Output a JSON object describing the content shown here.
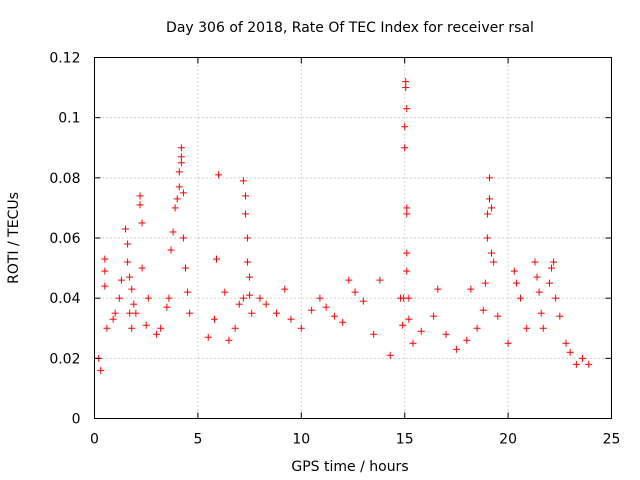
{
  "chart_data": {
    "type": "scatter",
    "title": "Day 306 of 2018, Rate Of TEC Index for receiver rsal",
    "xlabel": "GPS time / hours",
    "ylabel": "ROTI / TECUs",
    "xlim": [
      0,
      25
    ],
    "ylim": [
      0,
      0.12
    ],
    "x_ticks": [
      0,
      5,
      10,
      15,
      20,
      25
    ],
    "y_ticks": [
      0,
      0.02,
      0.04,
      0.06,
      0.08,
      0.1,
      0.12
    ],
    "x_tick_labels": [
      "0",
      "5",
      "10",
      "15",
      "20",
      "25"
    ],
    "y_tick_labels": [
      "0",
      "0.02",
      "0.04",
      "0.06",
      "0.08",
      "0.1",
      "0.12"
    ],
    "grid": true,
    "marker": "plus",
    "marker_color": "#ff0000",
    "series": [
      {
        "x": [
          0.2,
          0.3,
          0.5,
          0.5,
          0.5,
          0.6,
          0.9,
          1.0,
          1.2,
          1.3,
          1.5,
          1.6,
          1.6,
          1.7,
          1.7,
          1.8,
          1.8,
          1.9,
          2.0,
          2.2,
          2.2,
          2.3,
          2.3,
          2.5,
          2.6,
          3.0,
          3.2,
          3.5,
          3.6,
          3.7,
          3.8,
          3.9,
          4.0,
          4.1,
          4.1,
          4.2,
          4.2,
          4.2,
          4.3,
          4.3,
          4.4,
          4.5,
          4.6,
          5.5,
          5.8,
          5.9,
          6.0,
          6.3,
          6.5,
          6.8,
          7.0,
          7.2,
          7.2,
          7.3,
          7.3,
          7.4,
          7.4,
          7.5,
          7.5,
          7.6,
          8.0,
          8.3,
          8.8,
          9.2,
          9.5,
          10.0,
          10.5,
          10.9,
          11.2,
          11.6,
          12.0,
          12.3,
          12.6,
          13.0,
          13.5,
          13.8,
          14.3,
          14.8,
          14.9,
          14.95,
          15.0,
          15.0,
          15.05,
          15.05,
          15.1,
          15.1,
          15.1,
          15.1,
          15.1,
          15.2,
          15.2,
          15.4,
          15.8,
          16.4,
          16.6,
          17.0,
          17.5,
          18.0,
          18.2,
          18.5,
          18.8,
          18.9,
          19.0,
          19.0,
          19.1,
          19.1,
          19.2,
          19.2,
          19.3,
          19.5,
          20.0,
          20.3,
          20.4,
          20.6,
          20.9,
          21.3,
          21.4,
          21.5,
          21.6,
          21.7,
          22.0,
          22.1,
          22.2,
          22.3,
          22.5,
          22.8,
          23.0,
          23.3,
          23.6,
          23.9
        ],
        "y": [
          0.02,
          0.016,
          0.053,
          0.049,
          0.044,
          0.03,
          0.033,
          0.035,
          0.04,
          0.046,
          0.063,
          0.058,
          0.052,
          0.047,
          0.035,
          0.043,
          0.03,
          0.038,
          0.035,
          0.074,
          0.071,
          0.065,
          0.05,
          0.031,
          0.04,
          0.028,
          0.03,
          0.037,
          0.04,
          0.056,
          0.062,
          0.07,
          0.073,
          0.077,
          0.082,
          0.09,
          0.087,
          0.085,
          0.075,
          0.06,
          0.05,
          0.042,
          0.035,
          0.027,
          0.033,
          0.053,
          0.081,
          0.042,
          0.026,
          0.03,
          0.038,
          0.04,
          0.079,
          0.074,
          0.068,
          0.06,
          0.052,
          0.047,
          0.041,
          0.035,
          0.04,
          0.038,
          0.035,
          0.043,
          0.033,
          0.03,
          0.036,
          0.04,
          0.037,
          0.034,
          0.032,
          0.046,
          0.042,
          0.039,
          0.028,
          0.046,
          0.021,
          0.04,
          0.031,
          0.04,
          0.097,
          0.09,
          0.112,
          0.11,
          0.103,
          0.07,
          0.068,
          0.055,
          0.049,
          0.04,
          0.033,
          0.025,
          0.029,
          0.034,
          0.043,
          0.028,
          0.023,
          0.026,
          0.043,
          0.03,
          0.036,
          0.045,
          0.06,
          0.068,
          0.08,
          0.073,
          0.07,
          0.055,
          0.052,
          0.034,
          0.025,
          0.049,
          0.045,
          0.04,
          0.03,
          0.052,
          0.047,
          0.042,
          0.035,
          0.03,
          0.045,
          0.05,
          0.052,
          0.04,
          0.034,
          0.025,
          0.022,
          0.018,
          0.02,
          0.018
        ]
      }
    ]
  }
}
